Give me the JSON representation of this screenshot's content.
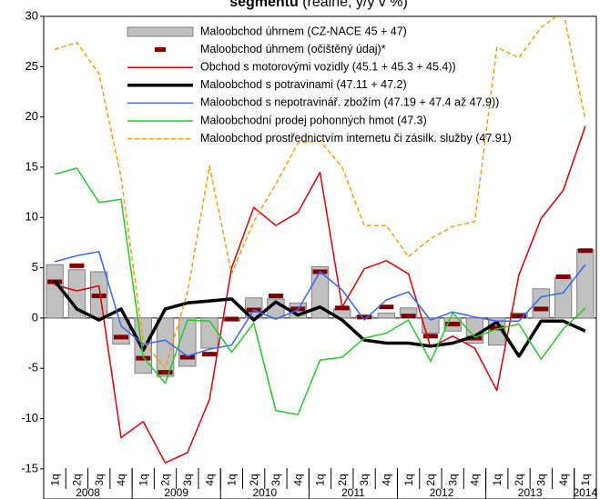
{
  "chart_data": {
    "type": "combo",
    "title": "segmentu",
    "subtitle": "(reálně, y/y v %)",
    "categories": [
      "1q",
      "2q",
      "3q",
      "4q",
      "1q",
      "2q",
      "3q",
      "4q",
      "1q",
      "2q",
      "3q",
      "4q",
      "1q",
      "2q",
      "3q",
      "4q",
      "1q",
      "2q",
      "3q",
      "4q",
      "1q",
      "2q",
      "3q",
      "4q",
      "1q"
    ],
    "years": [
      "2008",
      "2009",
      "2010",
      "2011",
      "2012",
      "2013",
      "2014"
    ],
    "ylim": [
      -18,
      30
    ],
    "yticks": [
      -15,
      -10,
      -5,
      0,
      5,
      10,
      15,
      20,
      25,
      30
    ],
    "series": [
      {
        "name": "Maloobchod úhrnem (CZ-NACE  45 + 47)",
        "type": "bar",
        "color": "#c0c0c0",
        "values": [
          5.3,
          4.8,
          4.6,
          -2.6,
          -5.5,
          -5.8,
          -4.8,
          -3.0,
          -0.3,
          2.0,
          1.9,
          1.5,
          5.1,
          0.9,
          0.2,
          0.5,
          1.0,
          -1.5,
          -1.3,
          -2.5,
          -2.7,
          0.5,
          2.9,
          4.0,
          6.8
        ]
      },
      {
        "name": "Maloobchod úhrnem (očištěný údaj)*",
        "type": "marker",
        "color": "#7f0000",
        "values": [
          3.6,
          5.2,
          2.2,
          -1.9,
          -4.0,
          -5.4,
          -3.9,
          -3.6,
          -0.1,
          0.8,
          2.2,
          0.9,
          4.6,
          1.0,
          0.1,
          1.1,
          0.2,
          -1.8,
          -0.6,
          -2.0,
          -1.0,
          0.2,
          0.9,
          4.1,
          6.7
        ]
      },
      {
        "name": "Obchod s motorovými vozidly (45.1 + 45.3 + 45.4))",
        "type": "line",
        "color": "#e00000",
        "values": [
          3.3,
          2.7,
          3.2,
          -11.9,
          -10.3,
          -14.4,
          -13.4,
          -8.1,
          5.0,
          11.0,
          9.2,
          10.5,
          14.5,
          1.1,
          4.9,
          5.7,
          4.4,
          -2.9,
          -1.8,
          -3.0,
          -7.2,
          4.3,
          9.9,
          12.7,
          19.1
        ]
      },
      {
        "name": "Maloobchod s potravinami (47.11 + 47.2)",
        "type": "line",
        "color": "#000000",
        "values": [
          3.7,
          0.9,
          -0.2,
          0.9,
          -3.2,
          0.9,
          1.5,
          1.7,
          1.9,
          -0.2,
          1.6,
          0.3,
          1.1,
          -0.2,
          -2.2,
          -2.5,
          -2.5,
          -2.8,
          -2.5,
          -1.8,
          -0.4,
          -3.8,
          -0.3,
          -0.3,
          -1.3
        ]
      },
      {
        "name": "Maloobchod s nepotravinář. zbožím (47.19 + 47.4 až 47.9))",
        "type": "line",
        "color": "#3366ff",
        "values": [
          5.6,
          6.2,
          6.6,
          -0.8,
          -2.6,
          -2.2,
          -3.8,
          -3.1,
          -2.7,
          0.8,
          -0.1,
          0.8,
          4.6,
          2.8,
          -0.2,
          1.8,
          2.6,
          -0.2,
          0.6,
          0.1,
          -0.3,
          -0.3,
          2.1,
          2.5,
          5.3
        ]
      },
      {
        "name": "Maloobchodní prodej pohonných hmot (47.3)",
        "type": "line",
        "color": "#22cc22",
        "values": [
          14.3,
          14.9,
          11.5,
          11.8,
          -3.9,
          -6.5,
          -0.2,
          -0.3,
          -3.4,
          -0.5,
          -9.2,
          -9.6,
          -4.2,
          -3.9,
          -2.0,
          -1.5,
          -0.2,
          -4.3,
          0.5,
          -1.9,
          -1.1,
          -0.6,
          -4.1,
          -1.1,
          1.0
        ]
      },
      {
        "name": "Maloobchod prostřednictvím internetu či zásilk. služby (47.91)",
        "type": "line",
        "dashed": true,
        "color": "#ff9900",
        "values": [
          26.7,
          27.4,
          24.3,
          14.0,
          -2.3,
          -5.0,
          2.5,
          15.1,
          4.4,
          9.6,
          13.3,
          17.4,
          17.6,
          15.0,
          9.2,
          9.2,
          6.1,
          7.9,
          9.1,
          9.6,
          26.9,
          25.9,
          28.9,
          30.5,
          19.7
        ]
      }
    ]
  }
}
